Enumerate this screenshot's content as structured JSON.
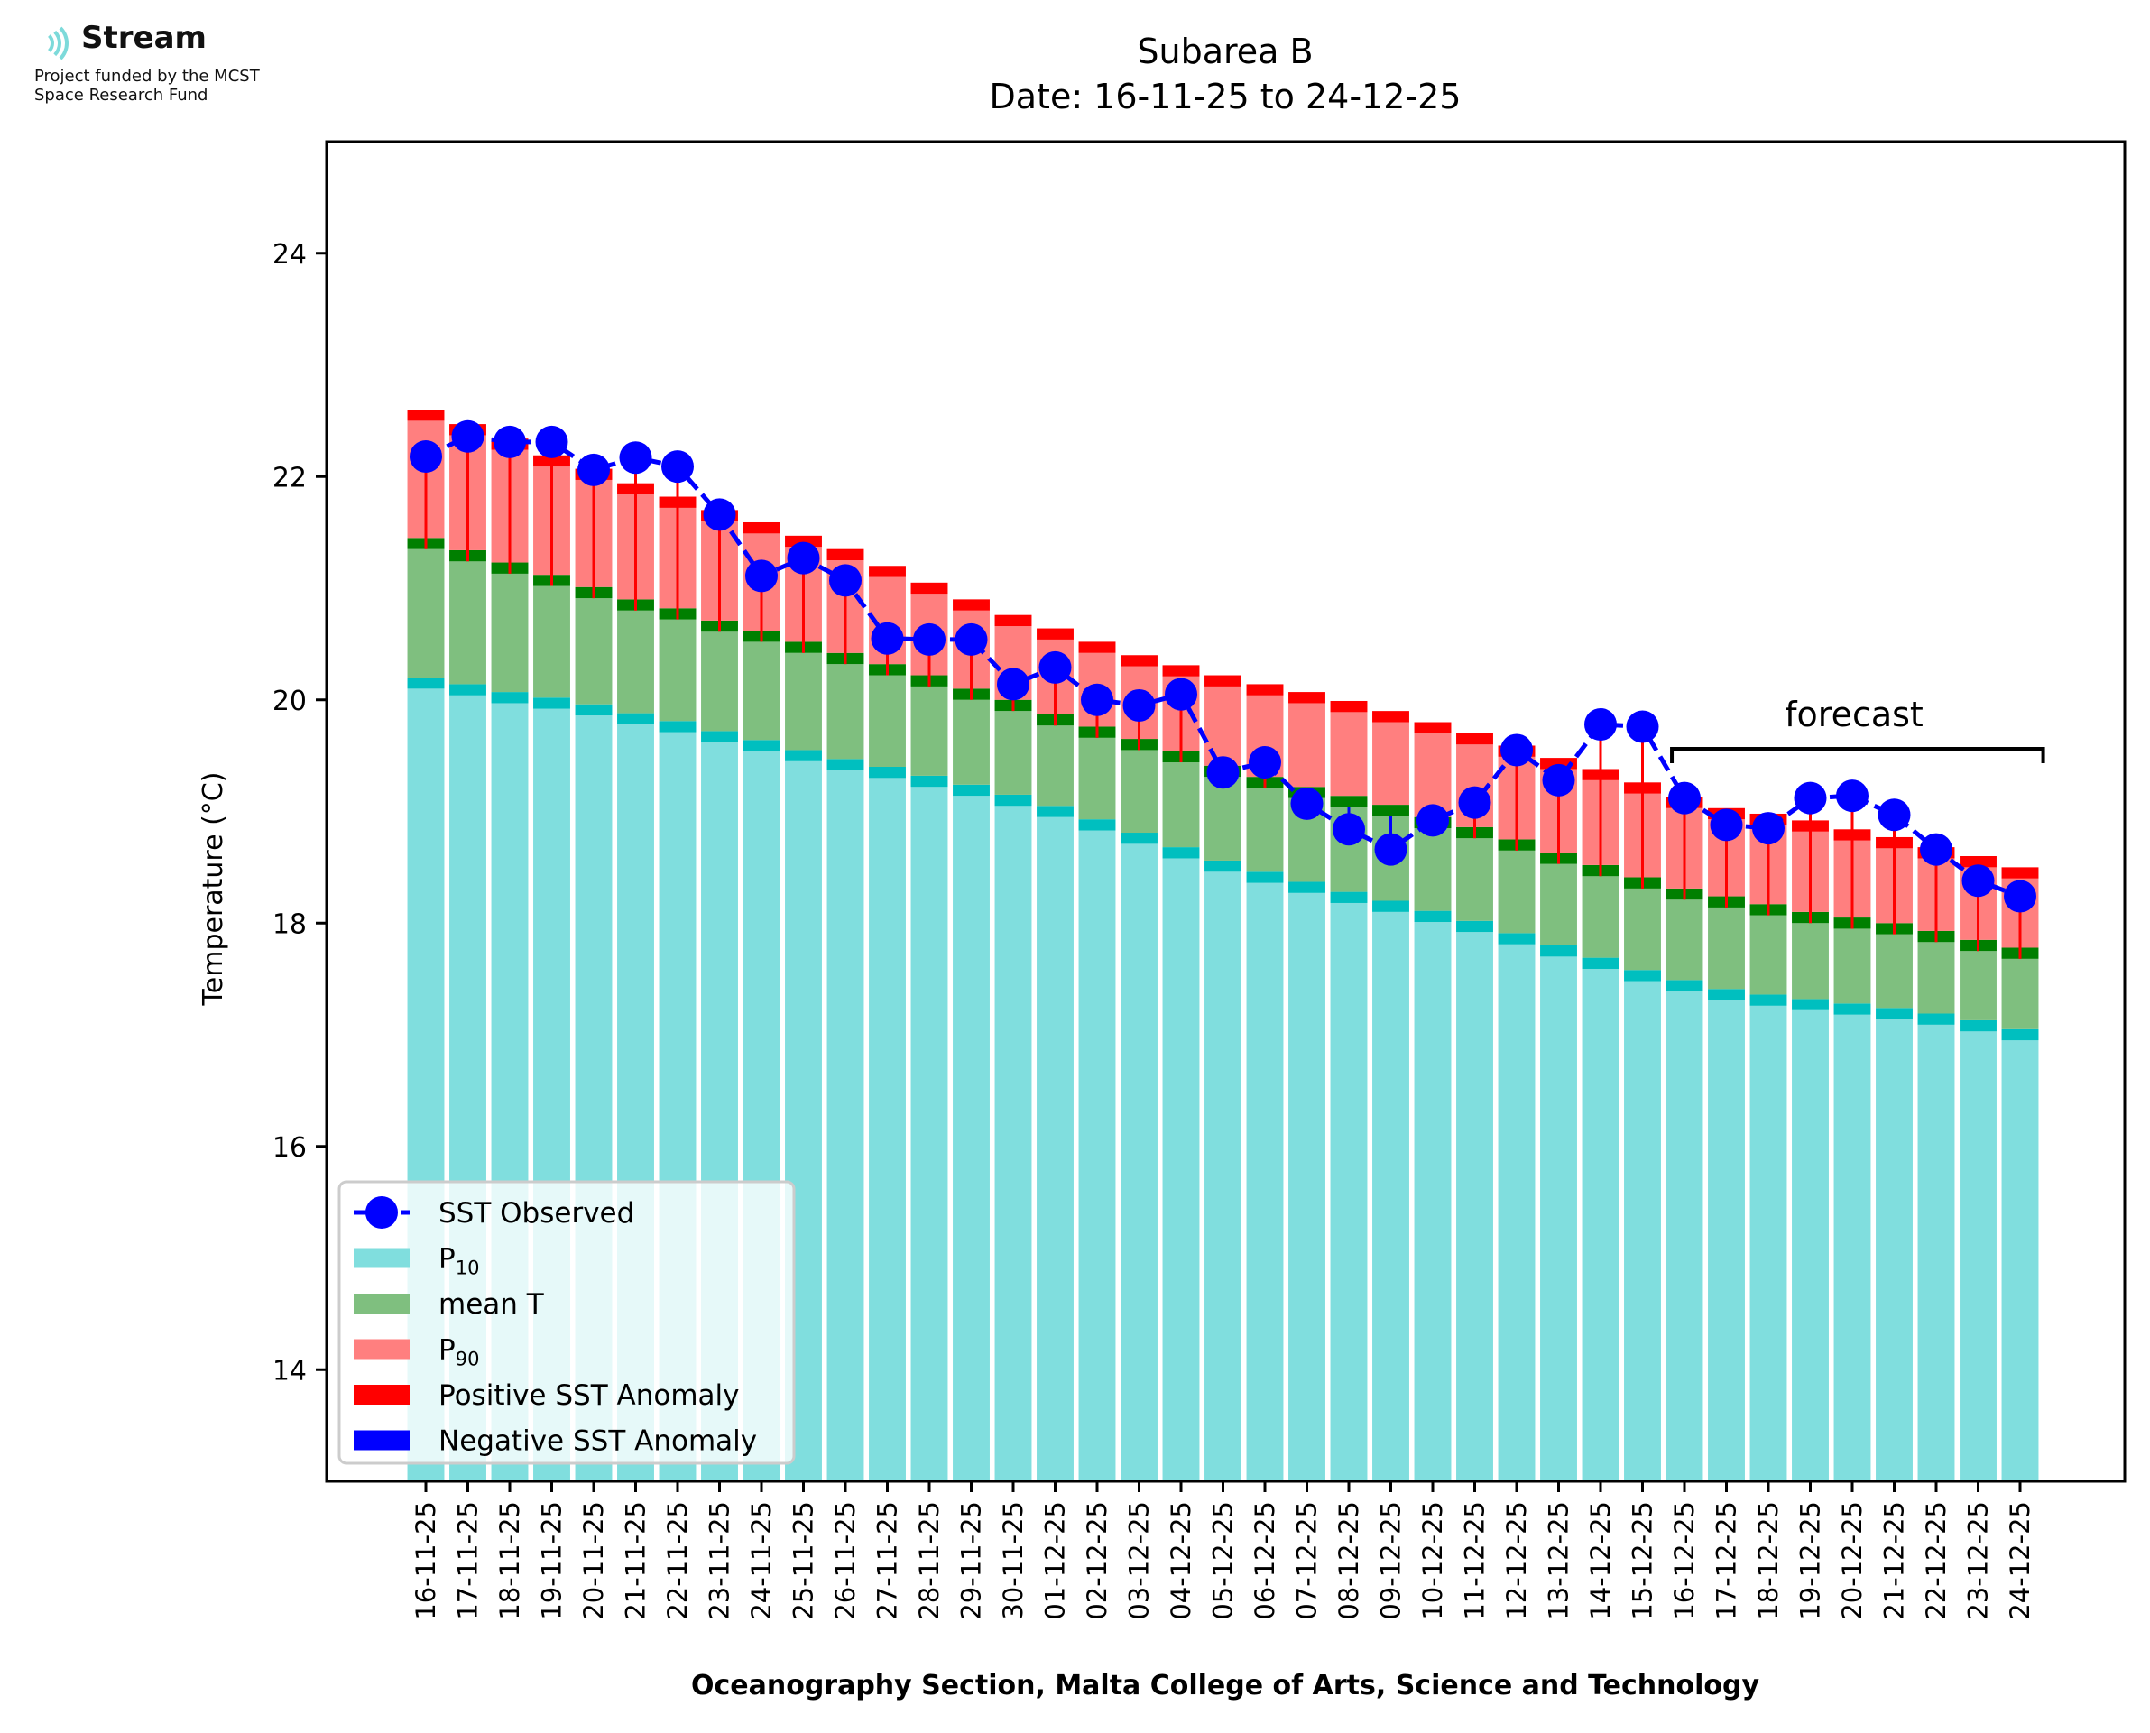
{
  "logo": {
    "name": "Stream",
    "subtitle_line1": "Project funded by the MCST",
    "subtitle_line2": "Space Research Fund"
  },
  "chart_data": {
    "type": "bar",
    "title": "Subarea B",
    "subtitle": "Date: 16-11-25 to 24-12-25",
    "xlabel": "Oceanography Section, Malta College of Arts, Science and Technology",
    "ylabel": "Temperature (°C)",
    "ylim": [
      13,
      25
    ],
    "yticks": [
      14,
      16,
      18,
      20,
      22,
      24
    ],
    "grid": false,
    "legend_position": "lower-left",
    "annotation": "forecast",
    "forecast_start": "16-12-25",
    "forecast_end": "24-12-25",
    "categories": [
      "16-11-25",
      "17-11-25",
      "18-11-25",
      "19-11-25",
      "20-11-25",
      "21-11-25",
      "22-11-25",
      "23-11-25",
      "24-11-25",
      "25-11-25",
      "26-11-25",
      "27-11-25",
      "28-11-25",
      "29-11-25",
      "30-11-25",
      "01-12-25",
      "02-12-25",
      "03-12-25",
      "04-12-25",
      "05-12-25",
      "06-12-25",
      "07-12-25",
      "08-12-25",
      "09-12-25",
      "10-12-25",
      "11-12-25",
      "12-12-25",
      "13-12-25",
      "14-12-25",
      "15-12-25",
      "16-12-25",
      "17-12-25",
      "18-12-25",
      "19-12-25",
      "20-12-25",
      "21-12-25",
      "22-12-25",
      "23-12-25",
      "24-12-25"
    ],
    "series": [
      {
        "name": "P10",
        "label_base": "P",
        "label_sub": "10",
        "color": "#80dede",
        "values": [
          20.1,
          20.04,
          19.97,
          19.92,
          19.86,
          19.78,
          19.71,
          19.62,
          19.54,
          19.45,
          19.37,
          19.3,
          19.22,
          19.14,
          19.05,
          18.95,
          18.83,
          18.71,
          18.58,
          18.46,
          18.36,
          18.27,
          18.18,
          18.1,
          18.01,
          17.92,
          17.81,
          17.7,
          17.59,
          17.48,
          17.39,
          17.31,
          17.26,
          17.22,
          17.18,
          17.14,
          17.09,
          17.03,
          16.95
        ]
      },
      {
        "name": "mean T",
        "label_base": "mean T",
        "label_sub": "",
        "color": "#7fbf7f",
        "values": [
          21.35,
          21.24,
          21.13,
          21.02,
          20.91,
          20.8,
          20.72,
          20.61,
          20.52,
          20.42,
          20.32,
          20.22,
          20.12,
          20.0,
          19.9,
          19.77,
          19.66,
          19.55,
          19.44,
          19.31,
          19.21,
          19.12,
          19.04,
          18.96,
          18.85,
          18.76,
          18.65,
          18.53,
          18.42,
          18.31,
          18.21,
          18.14,
          18.07,
          18.0,
          17.95,
          17.9,
          17.83,
          17.75,
          17.68
        ]
      },
      {
        "name": "P90",
        "label_base": "P",
        "label_sub": "90",
        "color": "#ff7f7f",
        "values": [
          22.5,
          22.37,
          22.24,
          22.09,
          21.97,
          21.84,
          21.72,
          21.6,
          21.49,
          21.37,
          21.25,
          21.1,
          20.95,
          20.8,
          20.66,
          20.54,
          20.42,
          20.3,
          20.21,
          20.12,
          20.04,
          19.97,
          19.89,
          19.8,
          19.7,
          19.6,
          19.49,
          19.38,
          19.28,
          19.16,
          19.03,
          18.93,
          18.88,
          18.82,
          18.74,
          18.67,
          18.58,
          18.5,
          18.4
        ]
      },
      {
        "name": "SST Observed",
        "label_base": "SST Observed",
        "label_sub": "",
        "color": "#0000ff",
        "values": [
          22.18,
          22.36,
          22.31,
          22.31,
          22.06,
          22.17,
          22.09,
          21.66,
          21.11,
          21.27,
          21.07,
          20.55,
          20.54,
          20.54,
          20.14,
          20.29,
          20.0,
          19.95,
          20.05,
          19.35,
          19.44,
          19.07,
          18.84,
          18.66,
          18.92,
          19.08,
          19.55,
          19.28,
          19.78,
          19.76,
          19.12,
          18.88,
          18.85,
          19.12,
          19.14,
          18.97,
          18.66,
          18.38,
          18.24
        ]
      }
    ],
    "anomaly_legend": [
      {
        "name": "Positive SST Anomaly",
        "color": "#ff0000"
      },
      {
        "name": "Negative SST Anomaly",
        "color": "#0000ff"
      }
    ]
  }
}
